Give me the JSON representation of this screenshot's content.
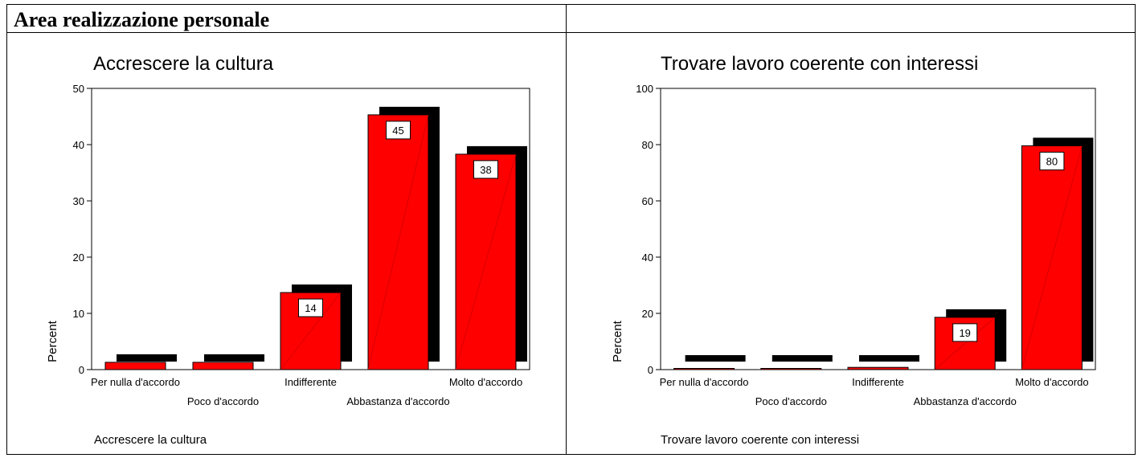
{
  "header": {
    "title": "Area realizzazione personale"
  },
  "charts": [
    {
      "caption": "Accrescere la cultura",
      "bar_color": "#ff0000",
      "shadow_color": "#000000",
      "chart_data": {
        "type": "bar",
        "title": "Accrescere la cultura",
        "xlabel": "",
        "ylabel": "Percent",
        "categories": [
          "Per nulla d'accordo",
          "Poco d'accordo",
          "Indifferente",
          "Abbastanza d'accordo",
          "Molto d'accordo"
        ],
        "values": [
          1.3,
          1.3,
          13.7,
          45.3,
          38.3
        ],
        "data_labels": [
          "",
          "",
          "14",
          "45",
          "38"
        ],
        "ylim": [
          0,
          50
        ],
        "yticks": [
          0,
          10,
          20,
          30,
          40,
          50
        ],
        "grid": false
      }
    },
    {
      "caption": "Trovare lavoro coerente con interessi",
      "bar_color": "#ff0000",
      "shadow_color": "#000000",
      "chart_data": {
        "type": "bar",
        "title": "Trovare lavoro coerente con interessi",
        "xlabel": "",
        "ylabel": "Percent",
        "categories": [
          "Per nulla d'accordo",
          "Poco d'accordo",
          "Indifferente",
          "Abbastanza d'accordo",
          "Molto d'accordo"
        ],
        "values": [
          0.3,
          0.3,
          0.8,
          18.6,
          79.6
        ],
        "data_labels": [
          "",
          "",
          "",
          "19",
          "80"
        ],
        "ylim": [
          0,
          100
        ],
        "yticks": [
          0,
          20,
          40,
          60,
          80,
          100
        ],
        "grid": false
      }
    }
  ]
}
